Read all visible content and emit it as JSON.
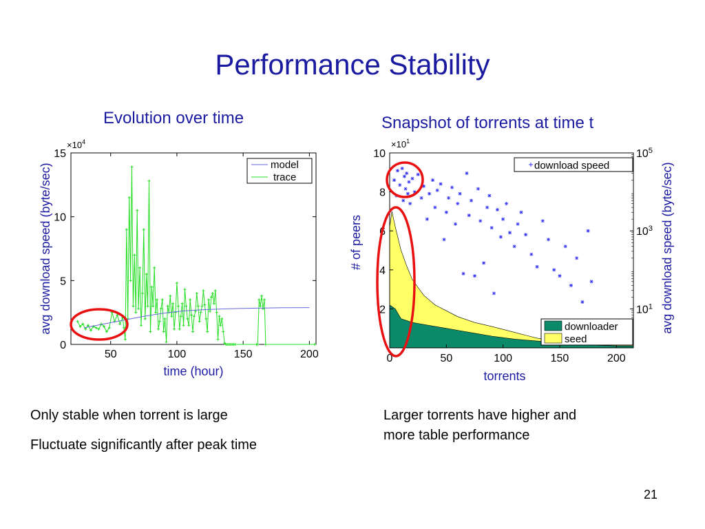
{
  "slide": {
    "title": "Performance Stability",
    "page_number": "21",
    "left_heading": "Evolution over time",
    "right_heading": "Snapshot of torrents at time t",
    "notes_left": [
      "Only stable when torrent is large",
      "Fluctuate significantly after peak time"
    ],
    "notes_right": [
      "Larger torrents have higher and",
      "more table performance"
    ],
    "colors": {
      "title": "#1a1aa0",
      "model": "#6666dd",
      "trace": "#22dd22",
      "downloader": "#0a8a6a",
      "seed": "#ffff66",
      "speed": "#3333ee",
      "annotation": "#e81010"
    }
  },
  "chart_data": [
    {
      "type": "line",
      "xlabel": "time (hour)",
      "ylabel": "avg download speed (byte/sec)",
      "y_multiplier": "×10",
      "y_multiplier_exp": "4",
      "xlim": [
        20,
        205
      ],
      "ylim": [
        0,
        15
      ],
      "xticks": [
        50,
        100,
        150,
        200
      ],
      "yticks": [
        0,
        5,
        10,
        15
      ],
      "grid": false,
      "legend_position": "top-right",
      "series": [
        {
          "name": "model",
          "x": [
            30,
            45,
            60,
            75,
            90,
            105,
            120,
            135,
            150,
            165,
            180,
            200
          ],
          "y": [
            1.3,
            1.6,
            1.9,
            2.2,
            2.45,
            2.62,
            2.72,
            2.78,
            2.82,
            2.85,
            2.87,
            2.88
          ]
        },
        {
          "name": "trace",
          "x": [
            25,
            27,
            29,
            31,
            33,
            35,
            37,
            39,
            41,
            43,
            45,
            47,
            49,
            51,
            53,
            55,
            57,
            59,
            60,
            61,
            62,
            63,
            64,
            65,
            66,
            67,
            68,
            69,
            70,
            71,
            72,
            73,
            74,
            75,
            76,
            77,
            78,
            79,
            80,
            81,
            82,
            83,
            84,
            85,
            86,
            87,
            88,
            89,
            90,
            91,
            92,
            93,
            94,
            95,
            96,
            97,
            98,
            99,
            100,
            101,
            102,
            103,
            104,
            105,
            106,
            107,
            108,
            109,
            110,
            111,
            112,
            113,
            114,
            115,
            116,
            117,
            118,
            119,
            120,
            121,
            122,
            123,
            124,
            125,
            126,
            127,
            128,
            129,
            130,
            131,
            132,
            133,
            134,
            135,
            136,
            137,
            138,
            139,
            140,
            141,
            142,
            143,
            144,
            160,
            161,
            162,
            163,
            164,
            165,
            166,
            167,
            204
          ],
          "y": [
            1.8,
            1.4,
            1.6,
            1.2,
            1.5,
            1.1,
            1.4,
            1.3,
            1.2,
            1.6,
            1.4,
            1.0,
            1.3,
            2.5,
            1.8,
            2.3,
            1.6,
            2.1,
            1.3,
            0.4,
            9.0,
            2.0,
            11.5,
            5.0,
            13.9,
            3.0,
            7.0,
            2.5,
            10.5,
            2.8,
            6.0,
            1.5,
            4.0,
            9.0,
            2.0,
            5.5,
            3.0,
            12.8,
            1.0,
            4.5,
            3.0,
            6.0,
            2.5,
            3.5,
            1.2,
            1.8,
            2.8,
            3.5,
            1.0,
            2.0,
            0.2,
            3.0,
            2.5,
            3.8,
            2.2,
            3.2,
            1.2,
            2.5,
            4.8,
            3.0,
            1.2,
            2.2,
            3.2,
            1.5,
            4.3,
            3.0,
            2.0,
            1.5,
            3.5,
            2.3,
            1.0,
            2.2,
            2.6,
            4.0,
            3.0,
            1.8,
            2.5,
            3.0,
            4.2,
            3.1,
            2.0,
            1.0,
            3.5,
            2.6,
            3.7,
            4.0,
            3.2,
            4.2,
            2.5,
            0.4,
            2.2,
            1.5,
            2.0,
            1.0,
            0.1,
            0,
            0,
            0,
            0,
            0,
            0,
            0,
            0,
            0,
            0,
            3.5,
            3.0,
            3.8,
            2.8,
            3.5,
            0,
            0
          ]
        }
      ]
    },
    {
      "type": "area",
      "xlabel": "torrents",
      "ylabel_left": "# of peers",
      "ylabel_right": "avg download speed (byte/sec)",
      "y_multiplier": "×10",
      "y_multiplier_exp": "1",
      "xlim": [
        0,
        215
      ],
      "ylim": [
        0,
        10
      ],
      "y2_scale": "log",
      "y2_lim": [
        1,
        100000
      ],
      "xticks": [
        0,
        50,
        100,
        150,
        200
      ],
      "yticks": [
        2,
        4,
        6,
        8,
        10
      ],
      "y2ticks": [
        {
          "value": 10,
          "base": "10",
          "exp": "1"
        },
        {
          "value": 1000,
          "base": "10",
          "exp": "3"
        },
        {
          "value": 100000,
          "base": "10",
          "exp": "5"
        }
      ],
      "legend_position": "top-right / bottom-right",
      "series": [
        {
          "name": "seed",
          "x": [
            0,
            2,
            5,
            10,
            15,
            20,
            30,
            40,
            50,
            60,
            75,
            90,
            110,
            130,
            150,
            175,
            200,
            215
          ],
          "y": [
            6.2,
            7.0,
            6.2,
            5.0,
            4.2,
            3.5,
            2.7,
            2.2,
            1.9,
            1.6,
            1.3,
            1.1,
            0.8,
            0.5,
            0.35,
            0.25,
            0.2,
            0.15
          ]
        },
        {
          "name": "downloader",
          "x": [
            0,
            5,
            10,
            20,
            30,
            40,
            50,
            60,
            75,
            90,
            110,
            130,
            150,
            175,
            200,
            215
          ],
          "y": [
            2.2,
            2.0,
            1.5,
            1.3,
            1.2,
            1.1,
            1.0,
            0.9,
            0.75,
            0.6,
            0.45,
            0.35,
            0.25,
            0.15,
            0.1,
            0.1
          ]
        },
        {
          "name": "download speed",
          "type": "scatter",
          "axis": "right",
          "x": [
            4,
            6,
            7,
            9,
            11,
            12,
            13,
            14,
            15,
            16,
            17,
            18,
            20,
            22,
            25,
            28,
            30,
            33,
            35,
            38,
            40,
            42,
            45,
            48,
            50,
            52,
            55,
            58,
            60,
            62,
            65,
            68,
            70,
            72,
            75,
            78,
            80,
            83,
            86,
            88,
            90,
            92,
            95,
            98,
            100,
            103,
            106,
            110,
            113,
            116,
            120,
            125,
            130,
            135,
            140,
            145,
            150,
            155,
            160,
            165,
            170,
            175,
            178
          ],
          "y": [
            20000,
            8000,
            35000,
            15000,
            40000,
            6000,
            25000,
            12000,
            30000,
            9000,
            18000,
            5000,
            22000,
            10000,
            28000,
            7000,
            14000,
            2000,
            9000,
            20000,
            4000,
            11000,
            16000,
            600,
            3000,
            7000,
            13000,
            1500,
            5000,
            9000,
            80,
            30000,
            2500,
            6000,
            70,
            12000,
            1800,
            150,
            4000,
            8000,
            1200,
            25,
            3500,
            700,
            2000,
            5000,
            900,
            400,
            1500,
            3000,
            800,
            250,
            120,
            1800,
            600,
            100,
            70,
            400,
            40,
            200,
            15,
            1000,
            50
          ]
        }
      ]
    }
  ]
}
